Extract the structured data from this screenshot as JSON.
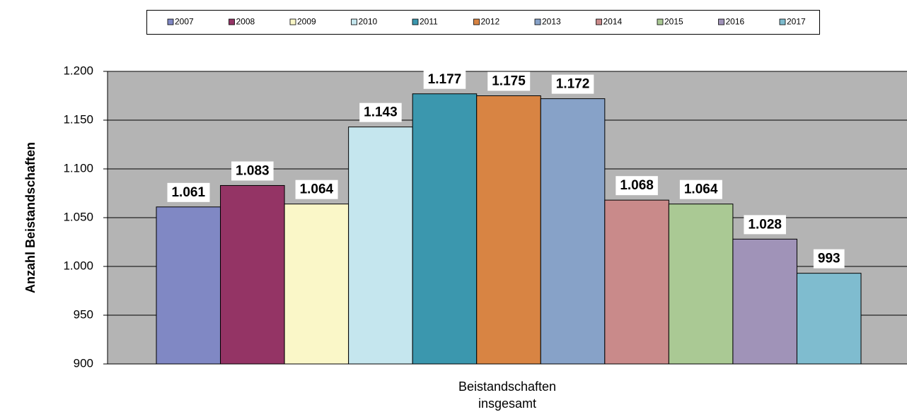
{
  "chart_data": {
    "type": "bar",
    "categories": [
      "Beistandschaften insgesamt"
    ],
    "y_label": "Anzahl Beistandschaften",
    "ylim": [
      900,
      1200
    ],
    "yticks": [
      900,
      950,
      {
        "value": 1000,
        "label": "1.000"
      },
      {
        "value": 1050,
        "label": "1.050"
      },
      {
        "value": 1100,
        "label": "1.100"
      },
      {
        "value": 1150,
        "label": "1.150"
      },
      {
        "value": 1200,
        "label": "1.200"
      }
    ],
    "grid": true,
    "legend": "top",
    "series": [
      {
        "name": "2007",
        "color": "#8088c4",
        "values": [
          1061
        ],
        "value_labels": [
          "1.061"
        ]
      },
      {
        "name": "2008",
        "color": "#943465",
        "values": [
          1083
        ],
        "value_labels": [
          "1.083"
        ]
      },
      {
        "name": "2009",
        "color": "#faf7c8",
        "values": [
          1064
        ],
        "value_labels": [
          "1.064"
        ]
      },
      {
        "name": "2010",
        "color": "#c5e6ee",
        "values": [
          1143
        ],
        "value_labels": [
          "1.143"
        ]
      },
      {
        "name": "2011",
        "color": "#3b97ae",
        "values": [
          1177
        ],
        "value_labels": [
          "1.177"
        ]
      },
      {
        "name": "2012",
        "color": "#d88443",
        "values": [
          1175
        ],
        "value_labels": [
          "1.175"
        ]
      },
      {
        "name": "2013",
        "color": "#87a2c8",
        "values": [
          1172
        ],
        "value_labels": [
          "1.172"
        ]
      },
      {
        "name": "2014",
        "color": "#c98a8a",
        "values": [
          1068
        ],
        "value_labels": [
          "1.068"
        ]
      },
      {
        "name": "2015",
        "color": "#aac994",
        "values": [
          1064
        ],
        "value_labels": [
          "1.064"
        ]
      },
      {
        "name": "2016",
        "color": "#a093b8",
        "values": [
          1028
        ],
        "value_labels": [
          "1.028"
        ]
      },
      {
        "name": "2017",
        "color": "#7fbccf",
        "values": [
          993
        ]
      }
    ]
  }
}
